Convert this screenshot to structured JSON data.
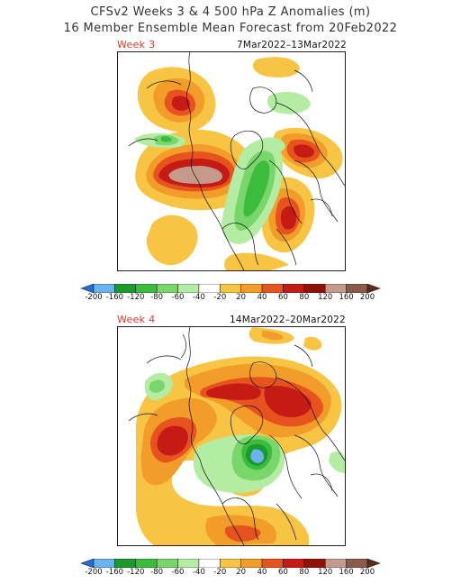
{
  "title_line1": "CFSv2 Weeks 3 & 4 500 hPa Z Anomalies (m)",
  "title_line2": "16 Member Ensemble Mean Forecast from 20Feb2022",
  "panels": [
    {
      "label": "Week 3",
      "date_range": "7Mar2022–13Mar2022"
    },
    {
      "label": "Week 4",
      "date_range": "14Mar2022–20Mar2022"
    }
  ],
  "colorbar": {
    "ticks": [
      "-200",
      "-160",
      "-120",
      "-80",
      "-60",
      "-40",
      "-20",
      "20",
      "40",
      "60",
      "80",
      "120",
      "160",
      "200"
    ],
    "colors": [
      "#1e6fd6",
      "#6ab4ee",
      "#1b9a2e",
      "#3cbc3c",
      "#78d66a",
      "#b4eca4",
      "#ffffff",
      "#f7c443",
      "#f29c2a",
      "#e6531e",
      "#c51b14",
      "#8e1208",
      "#c39a8c",
      "#8a5a4a",
      "#5b2b1a"
    ]
  },
  "colors": {
    "title": "#333333",
    "week_label": "#e0392b",
    "pos20": "#f7c443",
    "pos40": "#f29c2a",
    "pos60": "#e6531e",
    "pos80": "#c51b14",
    "pos120": "#8e1208",
    "pos160": "#c39a8c",
    "neg20": "#b4eca4",
    "neg40": "#78d66a",
    "neg60": "#3cbc3c",
    "neg80": "#1b9a2e",
    "neg120": "#6ab4ee"
  }
}
